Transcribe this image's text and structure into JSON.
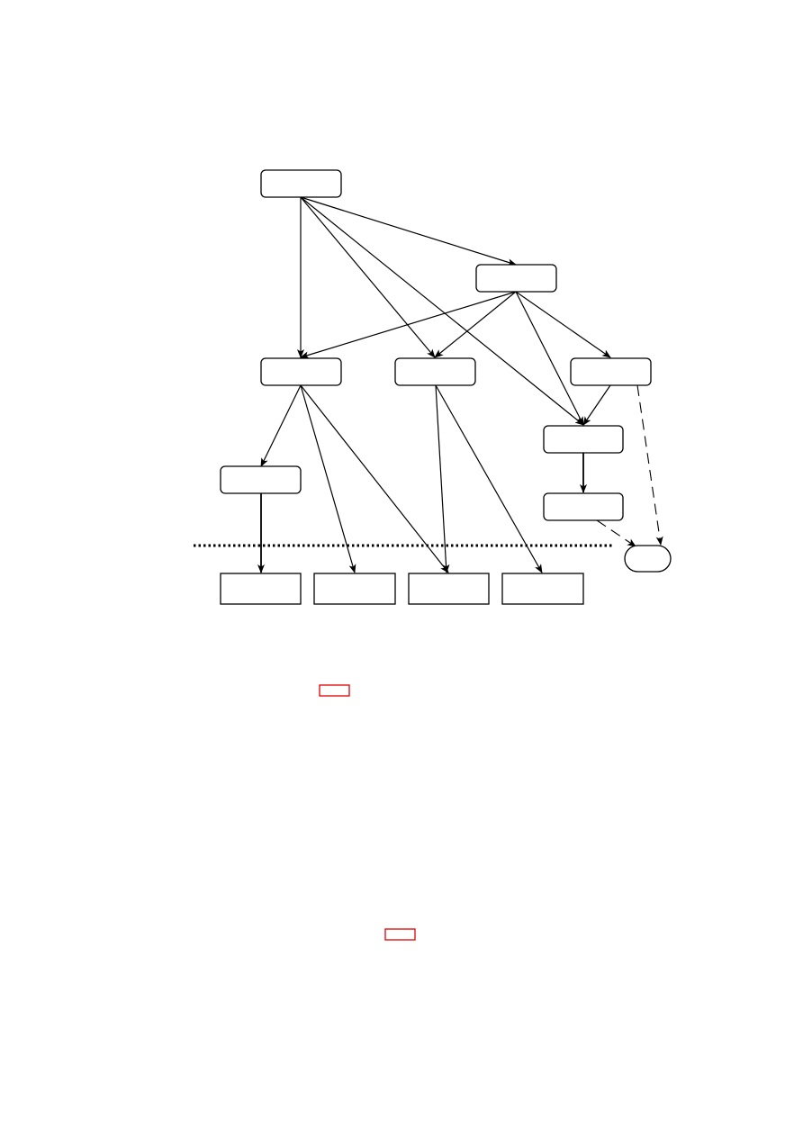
{
  "colors": {
    "line": "#000000",
    "node_fill": "#ffffff",
    "reference_link_border": "#e00000"
  },
  "diagram": {
    "nodes": [
      {
        "id": "n-top",
        "label": "",
        "shape": "rounded-rect"
      },
      {
        "id": "n-upper-right",
        "label": "",
        "shape": "rounded-rect"
      },
      {
        "id": "n-mid-left",
        "label": "",
        "shape": "rounded-rect"
      },
      {
        "id": "n-mid-center",
        "label": "",
        "shape": "rounded-rect"
      },
      {
        "id": "n-mid-right",
        "label": "",
        "shape": "rounded-rect"
      },
      {
        "id": "n-right-a",
        "label": "",
        "shape": "rounded-rect"
      },
      {
        "id": "n-right-b",
        "label": "",
        "shape": "rounded-rect"
      },
      {
        "id": "n-left-low",
        "label": "",
        "shape": "rounded-rect"
      },
      {
        "id": "n-terminal",
        "label": "",
        "shape": "stadium"
      },
      {
        "id": "n-bottom-1",
        "label": "",
        "shape": "rect"
      },
      {
        "id": "n-bottom-2",
        "label": "",
        "shape": "rect"
      },
      {
        "id": "n-bottom-3",
        "label": "",
        "shape": "rect"
      },
      {
        "id": "n-bottom-4",
        "label": "",
        "shape": "rect"
      }
    ],
    "edges": [
      {
        "from": "n-top",
        "to": "n-mid-left",
        "style": "solid"
      },
      {
        "from": "n-top",
        "to": "n-upper-right",
        "style": "solid"
      },
      {
        "from": "n-top",
        "to": "n-mid-center",
        "style": "solid"
      },
      {
        "from": "n-top",
        "to": "n-right-a",
        "style": "solid"
      },
      {
        "from": "n-upper-right",
        "to": "n-mid-left",
        "style": "solid"
      },
      {
        "from": "n-upper-right",
        "to": "n-mid-center",
        "style": "solid"
      },
      {
        "from": "n-upper-right",
        "to": "n-right-a",
        "style": "solid"
      },
      {
        "from": "n-upper-right",
        "to": "n-mid-right",
        "style": "solid"
      },
      {
        "from": "n-mid-right",
        "to": "n-right-a",
        "style": "solid"
      },
      {
        "from": "n-mid-right",
        "to": "n-terminal",
        "style": "dashed"
      },
      {
        "from": "n-right-a",
        "to": "n-right-b",
        "style": "bold"
      },
      {
        "from": "n-right-b",
        "to": "n-terminal",
        "style": "dashed"
      },
      {
        "from": "n-mid-left",
        "to": "n-left-low",
        "style": "solid"
      },
      {
        "from": "n-mid-left",
        "to": "n-bottom-2",
        "style": "solid"
      },
      {
        "from": "n-mid-left",
        "to": "n-bottom-3",
        "style": "solid"
      },
      {
        "from": "n-left-low",
        "to": "n-bottom-1",
        "style": "bold"
      },
      {
        "from": "n-mid-center",
        "to": "n-bottom-3",
        "style": "solid"
      },
      {
        "from": "n-mid-center",
        "to": "n-bottom-4",
        "style": "solid"
      }
    ],
    "separator": {
      "style": "dotted"
    }
  },
  "reference_links": [
    {
      "id": "ref-link-1",
      "text": ""
    },
    {
      "id": "ref-link-2",
      "text": ""
    }
  ]
}
